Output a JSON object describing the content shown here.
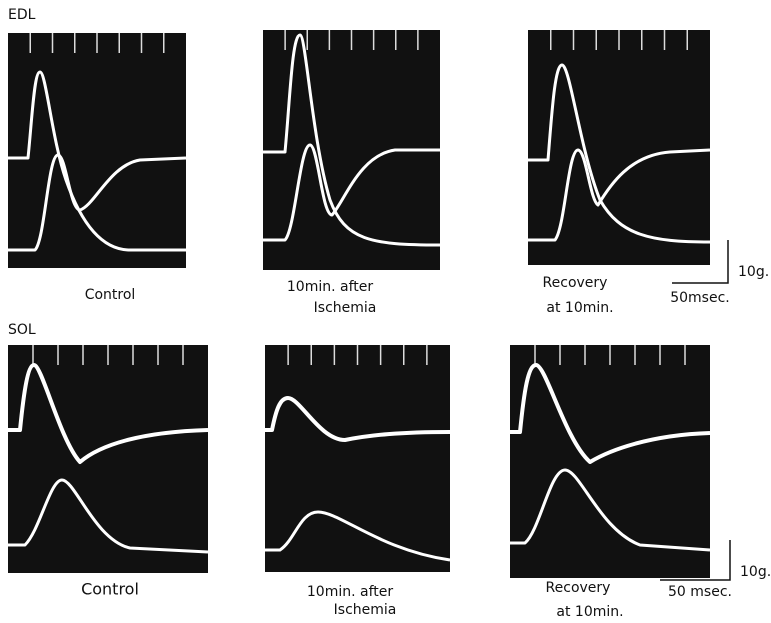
{
  "figure": {
    "rows": [
      {
        "label": "EDL",
        "panels": [
          {
            "caption": [
              "Control"
            ]
          },
          {
            "caption": [
              "10min. after",
              "Ischemia"
            ]
          },
          {
            "caption": [
              "Recovery",
              "at 10min."
            ]
          }
        ],
        "scale_bar": {
          "force": "10g.",
          "time": "50msec."
        }
      },
      {
        "label": "SOL",
        "panels": [
          {
            "caption": [
              "Control"
            ]
          },
          {
            "caption": [
              "10min. after",
              "Ischemia"
            ]
          },
          {
            "caption": [
              "Recovery",
              "at 10min."
            ]
          }
        ],
        "scale_bar": {
          "force": "10g.",
          "time": "50 msec."
        }
      }
    ]
  }
}
